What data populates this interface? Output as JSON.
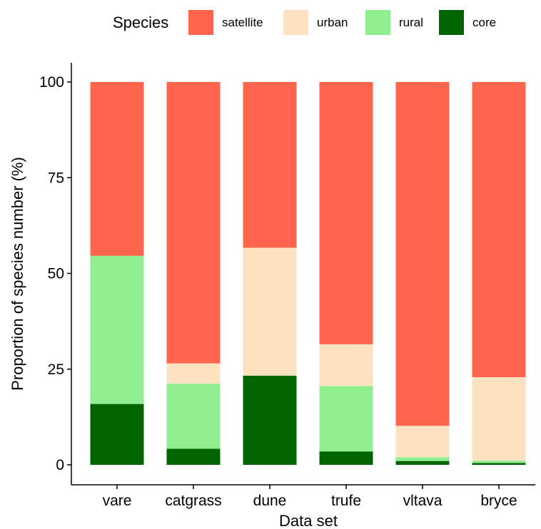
{
  "chart_data": {
    "type": "bar",
    "stacked": true,
    "xlabel": "Data set",
    "ylabel": "Proportion of species number (%)",
    "ylim": [
      0,
      100
    ],
    "yticks": [
      "0",
      "25",
      "50",
      "75",
      "100"
    ],
    "ytick_values": [
      0,
      25,
      50,
      75,
      100
    ],
    "grid": false,
    "legend": {
      "title": "Species",
      "position": "top",
      "entries": [
        {
          "label": "satellite",
          "color": "#FF644C"
        },
        {
          "label": "urban",
          "color": "#FDE2C2"
        },
        {
          "label": "rural",
          "color": "#90EE90"
        },
        {
          "label": "core",
          "color": "#006400"
        }
      ]
    },
    "categories": [
      "vare",
      "catgrass",
      "dune",
      "trufe",
      "vltava",
      "bryce"
    ],
    "series": [
      {
        "name": "core",
        "color": "#006400",
        "values": [
          15.9,
          4.2,
          23.3,
          3.5,
          1.0,
          0.5
        ]
      },
      {
        "name": "rural",
        "color": "#90EE90",
        "values": [
          38.7,
          17.0,
          0.0,
          17.1,
          1.0,
          0.6
        ]
      },
      {
        "name": "urban",
        "color": "#FDE2C2",
        "values": [
          0.0,
          5.3,
          33.4,
          10.9,
          8.2,
          21.8
        ]
      },
      {
        "name": "satellite",
        "color": "#FF644C",
        "values": [
          45.4,
          73.5,
          43.3,
          68.5,
          89.8,
          77.1
        ]
      }
    ]
  }
}
